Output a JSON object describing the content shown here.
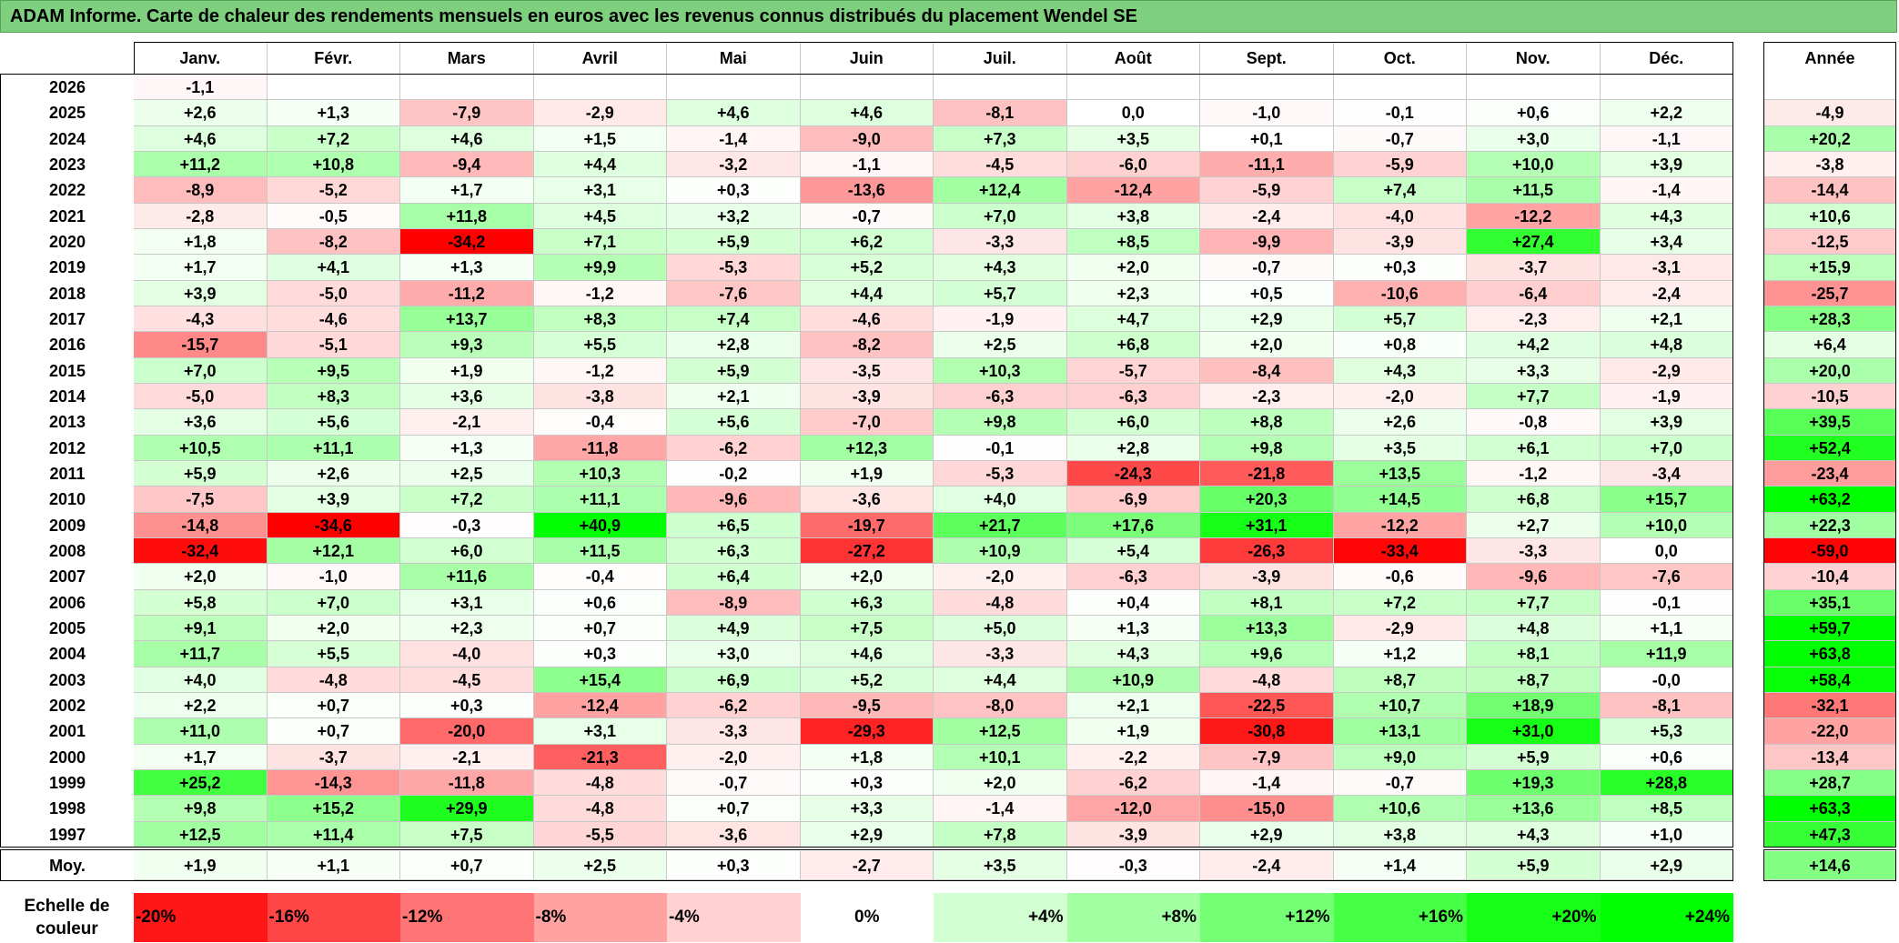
{
  "title": "ADAM Informe. Carte de chaleur des rendements mensuels en euros avec les revenus connus distribués du placement Wendel SE",
  "chart_data": {
    "type": "heatmap",
    "columns": [
      "Janv.",
      "Févr.",
      "Mars",
      "Avril",
      "Mai",
      "Juin",
      "Juil.",
      "Août",
      "Sept.",
      "Oct.",
      "Nov.",
      "Déc."
    ],
    "year_header": "Année",
    "average_label": "Moy.",
    "rows": [
      {
        "year": "2026",
        "values": [
          "-1,1",
          "",
          "",
          "",
          "",
          "",
          "",
          "",
          "",
          "",
          "",
          ""
        ],
        "annual": ""
      },
      {
        "year": "2025",
        "values": [
          "+2,6",
          "+1,3",
          "-7,9",
          "-2,9",
          "+4,6",
          "+4,6",
          "-8,1",
          "0,0",
          "-1,0",
          "-0,1",
          "+0,6",
          "+2,2"
        ],
        "annual": "-4,9"
      },
      {
        "year": "2024",
        "values": [
          "+4,6",
          "+7,2",
          "+4,6",
          "+1,5",
          "-1,4",
          "-9,0",
          "+7,3",
          "+3,5",
          "+0,1",
          "-0,7",
          "+3,0",
          "-1,1"
        ],
        "annual": "+20,2"
      },
      {
        "year": "2023",
        "values": [
          "+11,2",
          "+10,8",
          "-9,4",
          "+4,4",
          "-3,2",
          "-1,1",
          "-4,5",
          "-6,0",
          "-11,1",
          "-5,9",
          "+10,0",
          "+3,9"
        ],
        "annual": "-3,8"
      },
      {
        "year": "2022",
        "values": [
          "-8,9",
          "-5,2",
          "+1,7",
          "+3,1",
          "+0,3",
          "-13,6",
          "+12,4",
          "-12,4",
          "-5,9",
          "+7,4",
          "+11,5",
          "-1,4"
        ],
        "annual": "-14,4"
      },
      {
        "year": "2021",
        "values": [
          "-2,8",
          "-0,5",
          "+11,8",
          "+4,5",
          "+3,2",
          "-0,7",
          "+7,0",
          "+3,8",
          "-2,4",
          "-4,0",
          "-12,2",
          "+4,3"
        ],
        "annual": "+10,6"
      },
      {
        "year": "2020",
        "values": [
          "+1,8",
          "-8,2",
          "-34,2",
          "+7,1",
          "+5,9",
          "+6,2",
          "-3,3",
          "+8,5",
          "-9,9",
          "-3,9",
          "+27,4",
          "+3,4"
        ],
        "annual": "-12,5"
      },
      {
        "year": "2019",
        "values": [
          "+1,7",
          "+4,1",
          "+1,3",
          "+9,9",
          "-5,3",
          "+5,2",
          "+4,3",
          "+2,0",
          "-0,7",
          "+0,3",
          "-3,7",
          "-3,1"
        ],
        "annual": "+15,9"
      },
      {
        "year": "2018",
        "values": [
          "+3,9",
          "-5,0",
          "-11,2",
          "-1,2",
          "-7,6",
          "+4,4",
          "+5,7",
          "+2,3",
          "+0,5",
          "-10,6",
          "-6,4",
          "-2,4"
        ],
        "annual": "-25,7"
      },
      {
        "year": "2017",
        "values": [
          "-4,3",
          "-4,6",
          "+13,7",
          "+8,3",
          "+7,4",
          "-4,6",
          "-1,9",
          "+4,7",
          "+2,9",
          "+5,7",
          "-2,3",
          "+2,1"
        ],
        "annual": "+28,3"
      },
      {
        "year": "2016",
        "values": [
          "-15,7",
          "-5,1",
          "+9,3",
          "+5,5",
          "+2,8",
          "-8,2",
          "+2,5",
          "+6,8",
          "+2,0",
          "+0,8",
          "+4,2",
          "+4,8"
        ],
        "annual": "+6,4"
      },
      {
        "year": "2015",
        "values": [
          "+7,0",
          "+9,5",
          "+1,9",
          "-1,2",
          "+5,9",
          "-3,5",
          "+10,3",
          "-5,7",
          "-8,4",
          "+4,3",
          "+3,3",
          "-2,9"
        ],
        "annual": "+20,0"
      },
      {
        "year": "2014",
        "values": [
          "-5,0",
          "+8,3",
          "+3,6",
          "-3,8",
          "+2,1",
          "-3,9",
          "-6,3",
          "-6,3",
          "-2,3",
          "-2,0",
          "+7,7",
          "-1,9"
        ],
        "annual": "-10,5"
      },
      {
        "year": "2013",
        "values": [
          "+3,6",
          "+5,6",
          "-2,1",
          "-0,4",
          "+5,6",
          "-7,0",
          "+9,8",
          "+6,0",
          "+8,8",
          "+2,6",
          "-0,8",
          "+3,9"
        ],
        "annual": "+39,5"
      },
      {
        "year": "2012",
        "values": [
          "+10,5",
          "+11,1",
          "+1,3",
          "-11,8",
          "-6,2",
          "+12,3",
          "-0,1",
          "+2,8",
          "+9,8",
          "+3,5",
          "+6,1",
          "+7,0"
        ],
        "annual": "+52,4"
      },
      {
        "year": "2011",
        "values": [
          "+5,9",
          "+2,6",
          "+2,5",
          "+10,3",
          "-0,2",
          "+1,9",
          "-5,3",
          "-24,3",
          "-21,8",
          "+13,5",
          "-1,2",
          "-3,4"
        ],
        "annual": "-23,4"
      },
      {
        "year": "2010",
        "values": [
          "-7,5",
          "+3,9",
          "+7,2",
          "+11,1",
          "-9,6",
          "-3,6",
          "+4,0",
          "-6,9",
          "+20,3",
          "+14,5",
          "+6,8",
          "+15,7"
        ],
        "annual": "+63,2"
      },
      {
        "year": "2009",
        "values": [
          "-14,8",
          "-34,6",
          "-0,3",
          "+40,9",
          "+6,5",
          "-19,7",
          "+21,7",
          "+17,6",
          "+31,1",
          "-12,2",
          "+2,7",
          "+10,0"
        ],
        "annual": "+22,3"
      },
      {
        "year": "2008",
        "values": [
          "-32,4",
          "+12,1",
          "+6,0",
          "+11,5",
          "+6,3",
          "-27,2",
          "+10,9",
          "+5,4",
          "-26,3",
          "-33,4",
          "-3,3",
          "0,0"
        ],
        "annual": "-59,0"
      },
      {
        "year": "2007",
        "values": [
          "+2,0",
          "-1,0",
          "+11,6",
          "-0,4",
          "+6,4",
          "+2,0",
          "-2,0",
          "-6,3",
          "-3,9",
          "-0,6",
          "-9,6",
          "-7,6"
        ],
        "annual": "-10,4"
      },
      {
        "year": "2006",
        "values": [
          "+5,8",
          "+7,0",
          "+3,1",
          "+0,6",
          "-8,9",
          "+6,3",
          "-4,8",
          "+0,4",
          "+8,1",
          "+7,2",
          "+7,7",
          "-0,1"
        ],
        "annual": "+35,1"
      },
      {
        "year": "2005",
        "values": [
          "+9,1",
          "+2,0",
          "+2,3",
          "+0,7",
          "+4,9",
          "+7,5",
          "+5,0",
          "+1,3",
          "+13,3",
          "-2,9",
          "+4,8",
          "+1,1"
        ],
        "annual": "+59,7"
      },
      {
        "year": "2004",
        "values": [
          "+11,7",
          "+5,5",
          "-4,0",
          "+0,3",
          "+3,0",
          "+4,6",
          "-3,3",
          "+4,3",
          "+9,6",
          "+1,2",
          "+8,1",
          "+11,9"
        ],
        "annual": "+63,8"
      },
      {
        "year": "2003",
        "values": [
          "+4,0",
          "-4,8",
          "-4,5",
          "+15,4",
          "+6,9",
          "+5,2",
          "+4,4",
          "+10,9",
          "-4,8",
          "+8,7",
          "+8,7",
          "-0,0"
        ],
        "annual": "+58,4"
      },
      {
        "year": "2002",
        "values": [
          "+2,2",
          "+0,7",
          "+0,3",
          "-12,4",
          "-6,2",
          "-9,5",
          "-8,0",
          "+2,1",
          "-22,5",
          "+10,7",
          "+18,9",
          "-8,1"
        ],
        "annual": "-32,1"
      },
      {
        "year": "2001",
        "values": [
          "+11,0",
          "+0,7",
          "-20,0",
          "+3,1",
          "-3,3",
          "-29,3",
          "+12,5",
          "+1,9",
          "-30,8",
          "+13,1",
          "+31,0",
          "+5,3"
        ],
        "annual": "-22,0"
      },
      {
        "year": "2000",
        "values": [
          "+1,7",
          "-3,7",
          "-2,1",
          "-21,3",
          "-2,0",
          "+1,8",
          "+10,1",
          "-2,2",
          "-7,9",
          "+9,0",
          "+5,9",
          "+0,6"
        ],
        "annual": "-13,4"
      },
      {
        "year": "1999",
        "values": [
          "+25,2",
          "-14,3",
          "-11,8",
          "-4,8",
          "-0,7",
          "+0,3",
          "+2,0",
          "-6,2",
          "-1,4",
          "-0,7",
          "+19,3",
          "+28,8"
        ],
        "annual": "+28,7"
      },
      {
        "year": "1998",
        "values": [
          "+9,8",
          "+15,2",
          "+29,9",
          "-4,8",
          "+0,7",
          "+3,3",
          "-1,4",
          "-12,0",
          "-15,0",
          "+10,6",
          "+13,6",
          "+8,5"
        ],
        "annual": "+63,3"
      },
      {
        "year": "1997",
        "values": [
          "+12,5",
          "+11,4",
          "+7,5",
          "-5,5",
          "-3,6",
          "+2,9",
          "+7,8",
          "-3,9",
          "+2,9",
          "+3,8",
          "+4,3",
          "+1,0"
        ],
        "annual": "+47,3"
      }
    ],
    "averages": [
      "+1,9",
      "+1,1",
      "+0,7",
      "+2,5",
      "+0,3",
      "-2,7",
      "+3,5",
      "-0,3",
      "-2,4",
      "+1,4",
      "+5,9",
      "+2,9"
    ],
    "average_annual": "+14,6",
    "legend": {
      "label": "Echelle de couleur",
      "steps": [
        "-20%",
        "-16%",
        "-12%",
        "-8%",
        "-4%",
        "0%",
        "+4%",
        "+8%",
        "+12%",
        "+16%",
        "+20%",
        "+24%"
      ]
    },
    "colors": {
      "negative_max": "#ff0000",
      "neutral": "#ffffff",
      "positive_max": "#00ff00",
      "title_bg": "#7ed07e"
    }
  }
}
